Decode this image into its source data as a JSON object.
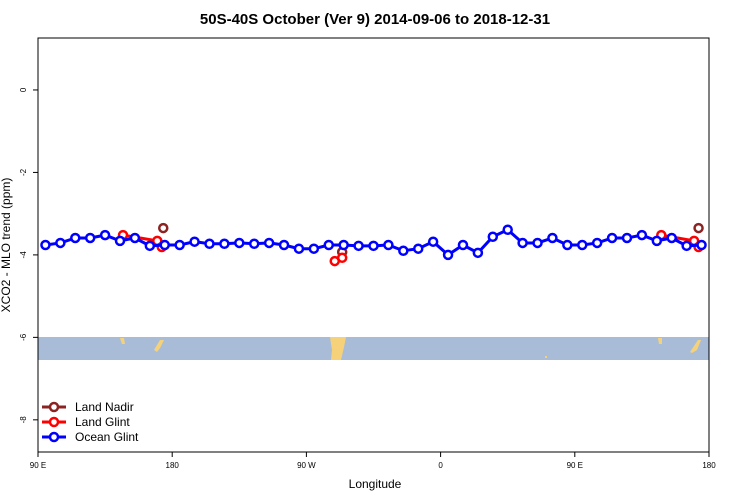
{
  "chart_data": {
    "type": "line",
    "title": "50S-40S October (Ver 9)   2014-09-06 to 2018-12-31",
    "x_label": "Longitude",
    "y_label": "XCO2 - MLO trend (ppm)",
    "xlim": [
      90,
      540
    ],
    "ylim": [
      -8.78,
      1.26
    ],
    "xticks": [
      {
        "value": 90,
        "label": "90 E"
      },
      180,
      {
        "value": 270,
        "label": "90 W"
      },
      {
        "value": 360,
        "label": "0"
      },
      {
        "value": 450,
        "label": "90 E"
      },
      {
        "value": 540,
        "label": "180"
      }
    ],
    "yticks": [
      0,
      -2,
      -4,
      -6,
      -8
    ],
    "legend": "bottom-left",
    "series": [
      {
        "name": "Land Nadir",
        "color": "#8b2323",
        "x": [
          174,
          230,
          294,
          400,
          533
        ],
        "values": [
          -3.35,
          null,
          -3.93,
          null,
          -3.35
        ]
      },
      {
        "name": "Land Glint",
        "color": "#ff0000",
        "x": [
          147,
          170,
          173,
          230,
          289,
          294,
          400,
          508,
          530,
          533
        ],
        "values": [
          -3.52,
          -3.66,
          -3.81,
          null,
          -4.15,
          -4.07,
          null,
          -3.52,
          -3.66,
          -3.81
        ]
      },
      {
        "name": "Ocean Glint",
        "color": "#0000ff",
        "x": [
          95,
          105,
          115,
          125,
          135,
          145,
          155,
          165,
          175,
          185,
          195,
          205,
          215,
          225,
          235,
          245,
          255,
          265,
          275,
          285,
          295,
          305,
          315,
          325,
          335,
          345,
          355,
          365,
          375,
          385,
          395,
          405,
          415,
          425,
          435,
          445,
          455,
          465,
          475,
          485,
          495,
          505,
          515,
          525,
          535
        ],
        "values": [
          -3.76,
          -3.71,
          -3.59,
          -3.59,
          -3.52,
          -3.66,
          -3.59,
          -3.78,
          -3.76,
          -3.76,
          -3.68,
          -3.73,
          -3.73,
          -3.71,
          -3.73,
          -3.71,
          -3.76,
          -3.85,
          -3.85,
          -3.76,
          -3.76,
          -3.78,
          -3.78,
          -3.76,
          -3.9,
          -3.85,
          -3.68,
          -4.0,
          -3.76,
          -3.95,
          -3.56,
          -3.39,
          -3.71,
          -3.71,
          -3.59,
          -3.76,
          -3.76,
          -3.71,
          -3.59,
          -3.59,
          -3.52,
          -3.66,
          -3.59,
          -3.78,
          -3.76
        ]
      }
    ]
  }
}
